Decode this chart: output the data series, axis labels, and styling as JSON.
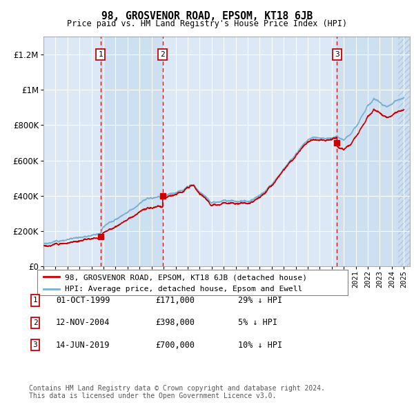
{
  "title": "98, GROSVENOR ROAD, EPSOM, KT18 6JB",
  "subtitle": "Price paid vs. HM Land Registry's House Price Index (HPI)",
  "xlim_start": 1995.0,
  "xlim_end": 2025.5,
  "ylim": [
    0,
    1300000
  ],
  "yticks": [
    0,
    200000,
    400000,
    600000,
    800000,
    1000000,
    1200000
  ],
  "ytick_labels": [
    "£0",
    "£200K",
    "£400K",
    "£600K",
    "£800K",
    "£1M",
    "£1.2M"
  ],
  "hpi_color": "#7ab0d4",
  "sale_color": "#cc0000",
  "vline_color": "#cc0000",
  "plot_bg_color": "#dce8f5",
  "band_color": "#c8ddf0",
  "hatch_band_color": "#c8ddf0",
  "transaction_dates": [
    1999.75,
    2004.92,
    2019.44
  ],
  "transaction_prices": [
    171000,
    398000,
    700000
  ],
  "transaction_labels": [
    "1",
    "2",
    "3"
  ],
  "legend_sale_label": "98, GROSVENOR ROAD, EPSOM, KT18 6JB (detached house)",
  "legend_hpi_label": "HPI: Average price, detached house, Epsom and Ewell",
  "table_rows": [
    [
      "1",
      "01-OCT-1999",
      "£171,000",
      "29% ↓ HPI"
    ],
    [
      "2",
      "12-NOV-2004",
      "£398,000",
      "5% ↓ HPI"
    ],
    [
      "3",
      "14-JUN-2019",
      "£700,000",
      "10% ↓ HPI"
    ]
  ],
  "footnote": "Contains HM Land Registry data © Crown copyright and database right 2024.\nThis data is licensed under the Open Government Licence v3.0."
}
